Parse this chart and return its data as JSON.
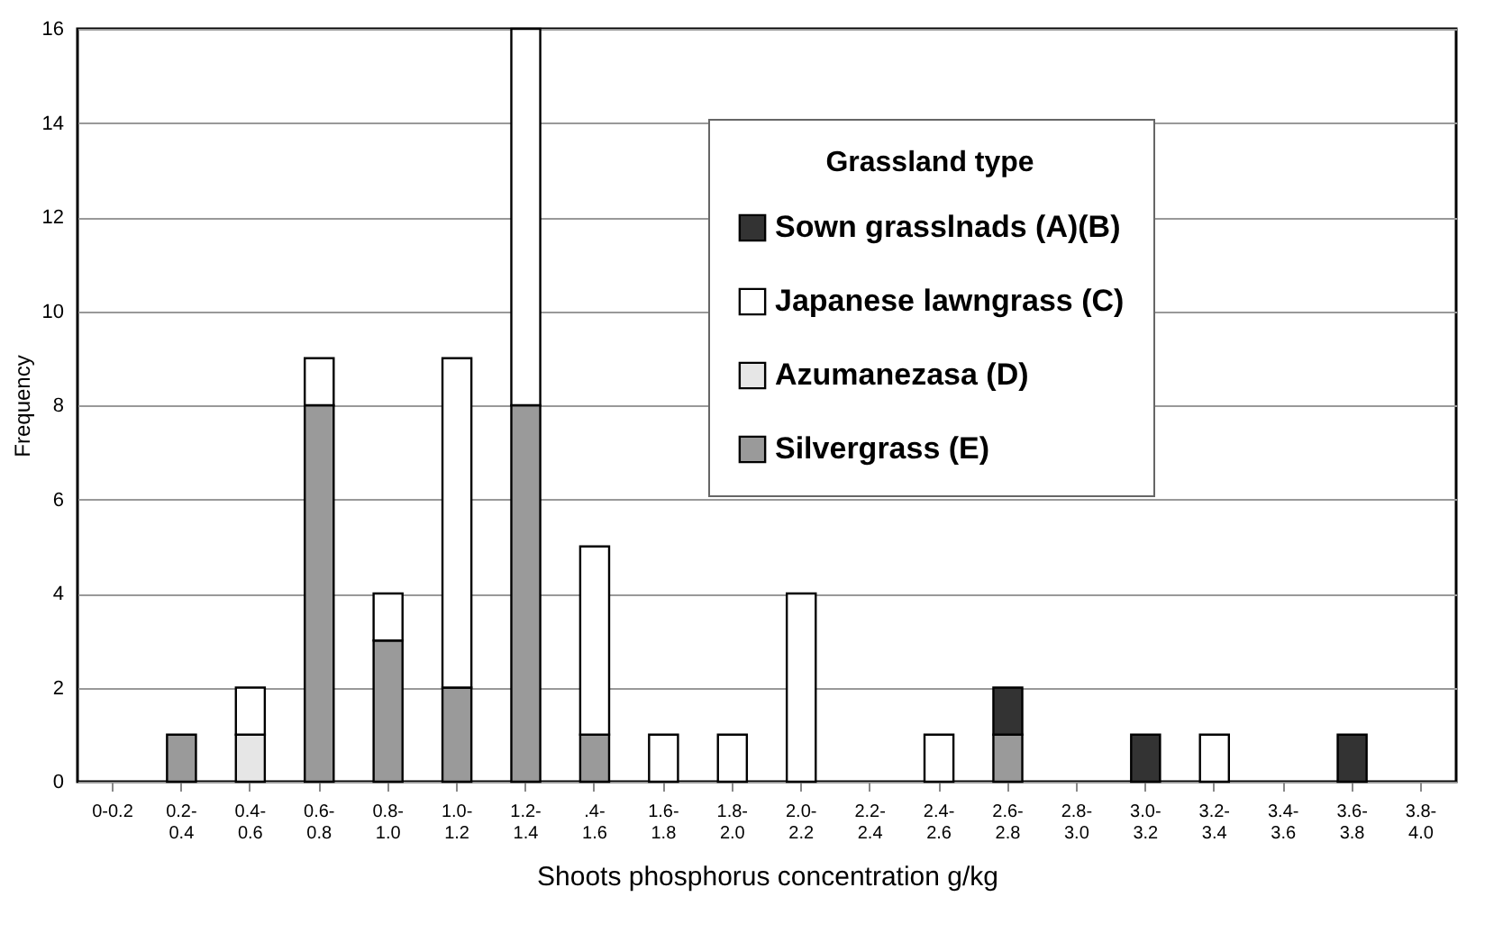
{
  "chart_data": {
    "type": "bar",
    "stacked": true,
    "xlabel": "Shoots phosphorus concentration g/kg",
    "ylabel": "Frequency",
    "legend_title": "Grassland type",
    "categories": [
      "0-0.2",
      "0.2- 0.4",
      "0.4- 0.6",
      "0.6- 0.8",
      "0.8- 1.0",
      "1.0- 1.2",
      "1.2- 1.4",
      ".4- 1.6",
      "1.6- 1.8",
      "1.8- 2.0",
      "2.0- 2.2",
      "2.2- 2.4",
      "2.4- 2.6",
      "2.6- 2.8",
      "2.8- 3.0",
      "3.0- 3.2",
      "3.2- 3.4",
      "3.4- 3.6",
      "3.6- 3.8",
      "3.8- 4.0"
    ],
    "series": [
      {
        "name": "Silvergrass (E)",
        "color": "#9a9a9a",
        "values": [
          null,
          1,
          null,
          8,
          3,
          2,
          8,
          1,
          null,
          null,
          null,
          null,
          null,
          1,
          null,
          null,
          null,
          null,
          null,
          null
        ]
      },
      {
        "name": "Azumanezasa (D)",
        "color": "#e6e6e6",
        "values": [
          null,
          null,
          1,
          null,
          null,
          null,
          null,
          null,
          null,
          null,
          null,
          null,
          null,
          null,
          null,
          null,
          null,
          null,
          null,
          null
        ]
      },
      {
        "name": "Japanese lawngrass (C)",
        "color": "#ffffff",
        "values": [
          null,
          null,
          1,
          1,
          1,
          7,
          8,
          4,
          1,
          1,
          4,
          null,
          1,
          null,
          null,
          null,
          1,
          null,
          null,
          null
        ]
      },
      {
        "name": "Sown grasslnads (A)(B)",
        "color": "#333333",
        "values": [
          null,
          null,
          null,
          null,
          null,
          null,
          null,
          null,
          null,
          null,
          null,
          null,
          null,
          1,
          null,
          1,
          null,
          null,
          1,
          null
        ]
      }
    ],
    "ylim": [
      0,
      16
    ],
    "yticks": [
      0,
      2,
      4,
      6,
      8,
      10,
      12,
      14,
      16
    ],
    "grid": "y",
    "legend": "top right"
  }
}
